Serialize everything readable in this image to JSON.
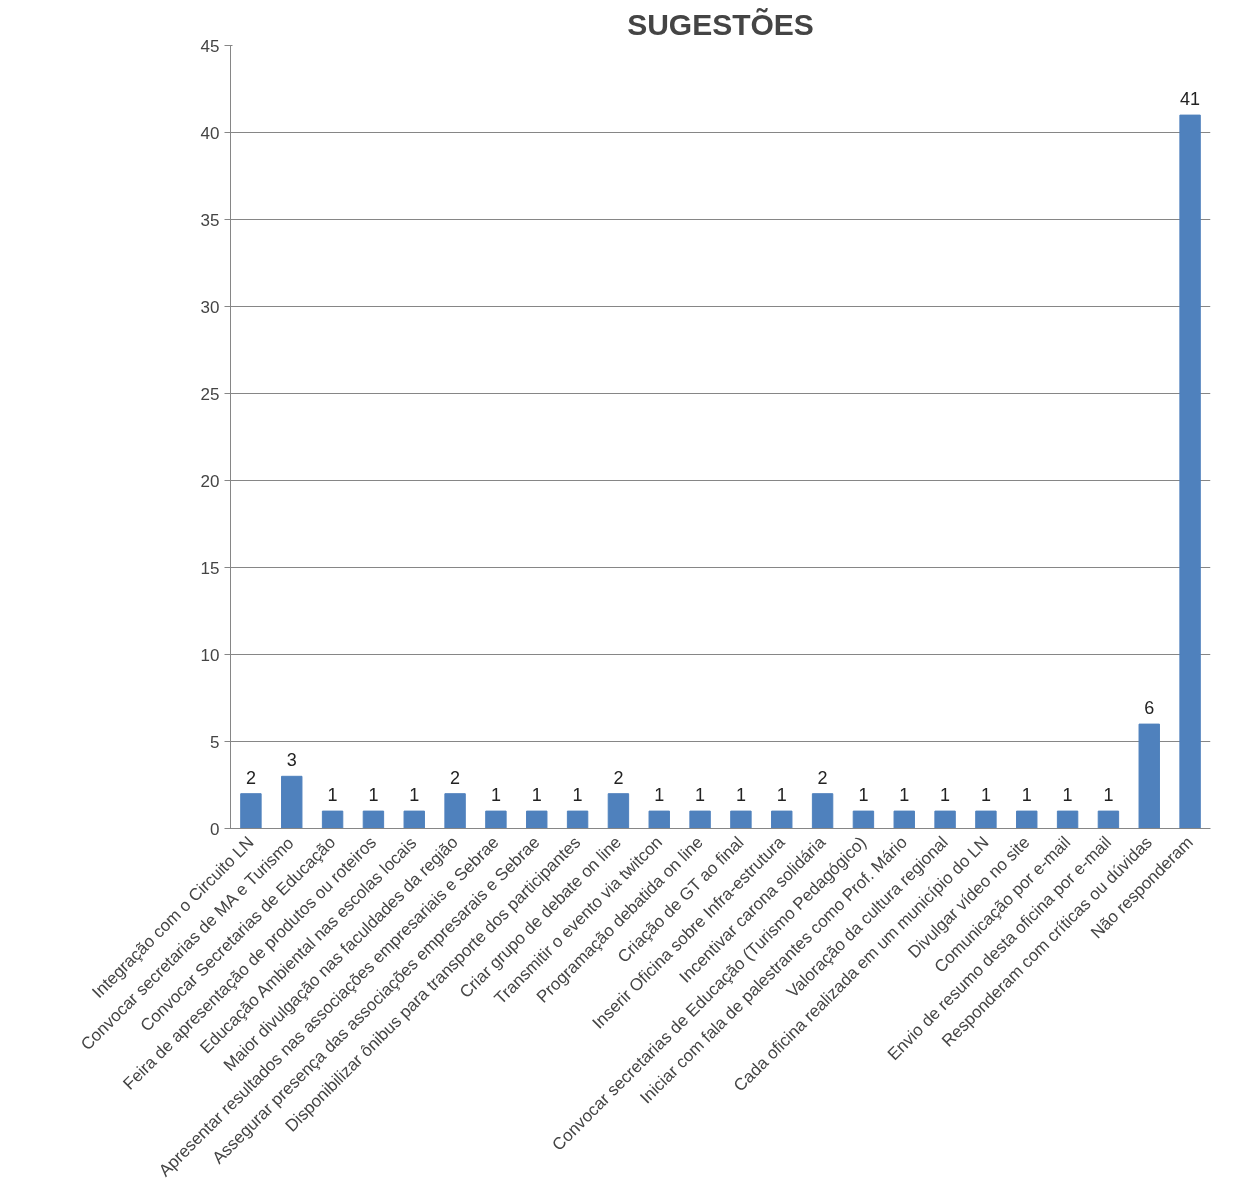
{
  "chart_data": {
    "type": "bar",
    "title": "SUGESTÕES",
    "categories": [
      "Integração com o Circuito LN",
      "Convocar secretarias de MA e Turismo",
      "Convocar Secretarias de Educação",
      "Feira de apresentação de produtos ou roteiros",
      "Educação Ambiental nas escolas locais",
      "Maior divulgação nas faculdades da região",
      "Apresentar resultados nas associações empresariais e Sebrae",
      "Assegurar presença das associações empresarais e Sebrae",
      "Disponibilizar ônibus para transporte dos participantes",
      "Criar grupo de debate on line",
      "Transmitir o evento via twitcon",
      "Programação debatida on line",
      "Criação de GT ao final",
      "Inserir Oficina sobre Infra-estrutura",
      "Incentivar carona solidária",
      "Convocar secretarias de Educação (Turismo Pedagógico)",
      "Iniciar com fala de palestrantes como Prof. Mário",
      "Valoração da cultura regional",
      "Cada oficina realizada em um município do LN",
      "Divulgar vídeo no site",
      "Comunicação por e-mail",
      "Envio de resumo desta oficina por e-mail",
      "Responderam com críticas ou dúvidas",
      "Não responderam"
    ],
    "values": [
      2,
      3,
      1,
      1,
      1,
      2,
      1,
      1,
      1,
      2,
      1,
      1,
      1,
      1,
      2,
      1,
      1,
      1,
      1,
      1,
      1,
      1,
      6,
      41
    ],
    "color": "#4f81bd",
    "ylim": [
      0,
      45
    ],
    "yticks": [
      0,
      5,
      10,
      15,
      20,
      25,
      30,
      35,
      40,
      45
    ],
    "grid": "y",
    "data_labels": true
  }
}
